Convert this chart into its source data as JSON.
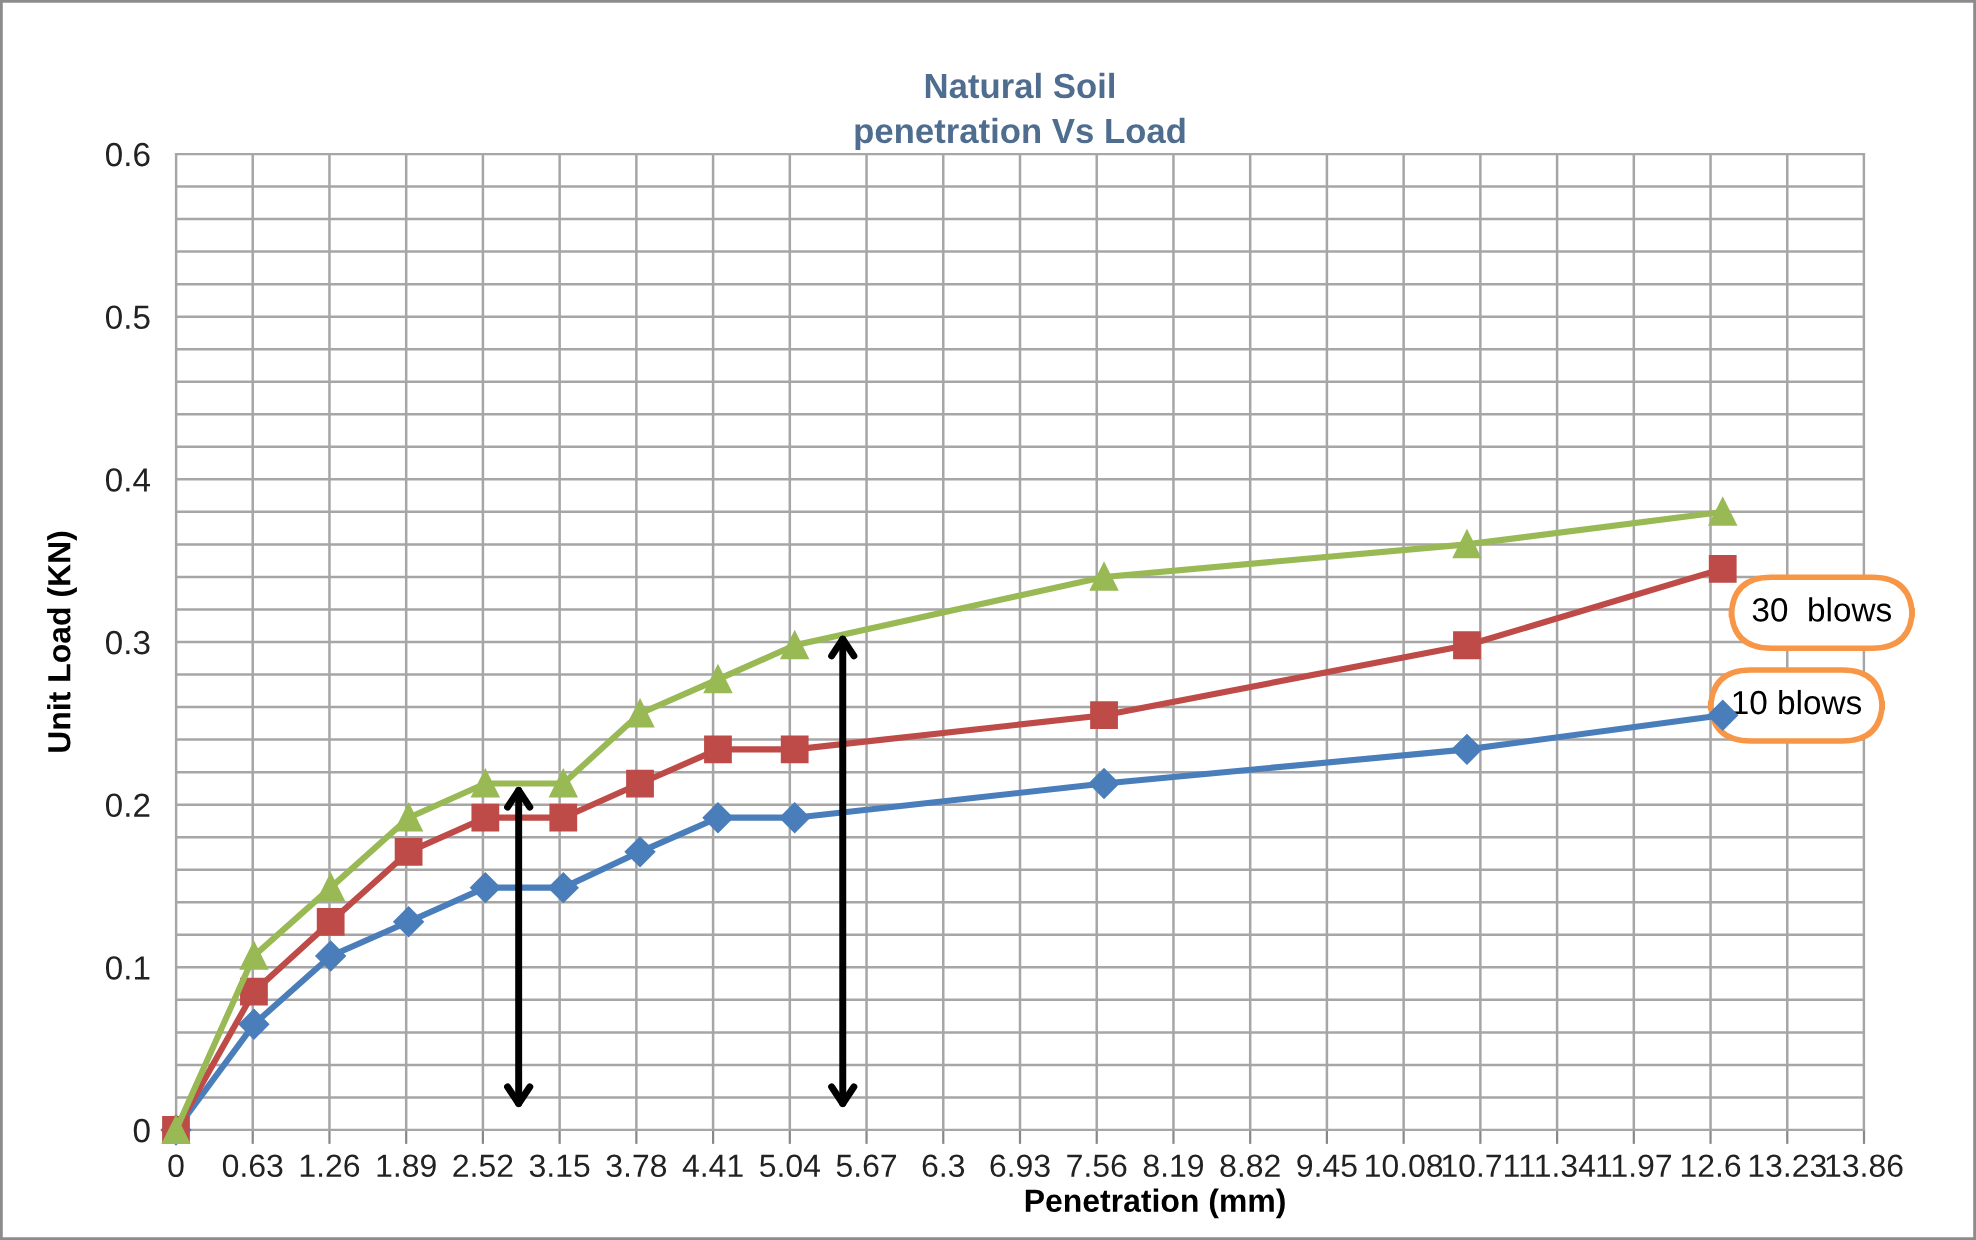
{
  "chart_data": {
    "type": "line",
    "title": "Natural Soil\npenetration Vs Load",
    "xlabel": "Penetration (mm)",
    "ylabel": "Unit Load (KN)",
    "x": [
      0,
      0.64,
      1.27,
      1.91,
      2.54,
      3.18,
      3.81,
      4.45,
      5.08,
      7.62,
      10.6,
      12.7
    ],
    "series": [
      {
        "color": "#4a7ebb",
        "marker": "diamond",
        "values": [
          0,
          0.065,
          0.107,
          0.128,
          0.149,
          0.149,
          0.171,
          0.192,
          0.192,
          0.213,
          0.234,
          0.255
        ]
      },
      {
        "color": "#be4b48",
        "marker": "square",
        "values": [
          0,
          0.085,
          0.128,
          0.171,
          0.192,
          0.192,
          0.213,
          0.234,
          0.234,
          0.255,
          0.298,
          0.345
        ]
      },
      {
        "color": "#98b954",
        "marker": "triangle",
        "values": [
          0,
          0.107,
          0.149,
          0.192,
          0.213,
          0.213,
          0.256,
          0.277,
          0.298,
          0.34,
          0.36,
          0.38
        ]
      }
    ],
    "xlim": [
      0,
      13.86
    ],
    "xticks": [
      0,
      0.63,
      1.26,
      1.89,
      2.52,
      3.15,
      3.78,
      4.41,
      5.04,
      5.67,
      6.3,
      6.93,
      7.56,
      8.19,
      8.82,
      9.45,
      10.08,
      10.71,
      11.34,
      11.97,
      12.6,
      13.23,
      13.86
    ],
    "ylim": [
      0,
      0.6
    ],
    "yticks": [
      0,
      {
        "value": 0.02,
        "label": null
      },
      {
        "value": 0.04,
        "label": null
      },
      {
        "value": 0.06,
        "label": null
      },
      {
        "value": 0.08,
        "label": null
      },
      0.1,
      {
        "value": 0.12,
        "label": null
      },
      {
        "value": 0.14,
        "label": null
      },
      {
        "value": 0.16,
        "label": null
      },
      {
        "value": 0.18,
        "label": null
      },
      0.2,
      {
        "value": 0.22,
        "label": null
      },
      {
        "value": 0.24,
        "label": null
      },
      {
        "value": 0.26,
        "label": null
      },
      {
        "value": 0.28,
        "label": null
      },
      0.3,
      {
        "value": 0.32,
        "label": null
      },
      {
        "value": 0.34,
        "label": null
      },
      {
        "value": 0.36,
        "label": null
      },
      {
        "value": 0.38,
        "label": null
      },
      0.4,
      {
        "value": 0.42,
        "label": null
      },
      {
        "value": 0.44,
        "label": null
      },
      {
        "value": 0.46,
        "label": null
      },
      {
        "value": 0.48,
        "label": null
      },
      0.5,
      {
        "value": 0.52,
        "label": null
      },
      {
        "value": 0.54,
        "label": null
      },
      {
        "value": 0.56,
        "label": null
      },
      {
        "value": 0.58,
        "label": null
      },
      0.6
    ],
    "grid": true,
    "line_style": "solid",
    "annotations": [
      "30  blows",
      "10 blows"
    ]
  }
}
